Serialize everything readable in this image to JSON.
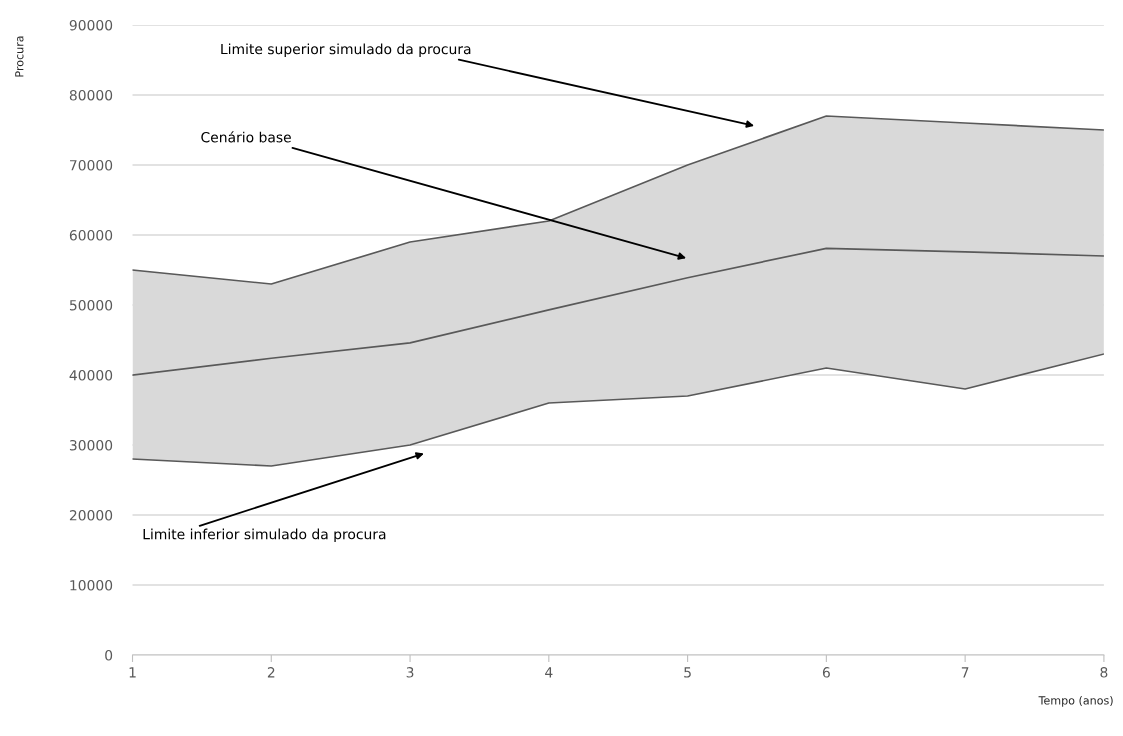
{
  "chart_data": {
    "type": "line",
    "xlabel": "Tempo (anos)",
    "ylabel": "Procura",
    "x": [
      1,
      2,
      3,
      4,
      5,
      6,
      7,
      8
    ],
    "series": [
      {
        "color": "#595959",
        "values": [
          55000,
          53000,
          59000,
          62000,
          70000,
          77000,
          76000,
          75000
        ]
      },
      {
        "color": "#595959",
        "values": [
          40000,
          42400,
          44600,
          49300,
          53900,
          58100,
          57600,
          57000
        ],
        "lower": [
          28000,
          27000,
          30000,
          36000,
          37000,
          41000,
          38000,
          43000
        ],
        "upper": [
          55000,
          53000,
          59000,
          62000,
          70000,
          77000,
          76000,
          75000
        ]
      },
      {
        "color": "#595959",
        "values": [
          28000,
          27000,
          30000,
          36000,
          37000,
          41000,
          38000,
          43000
        ]
      }
    ],
    "annotations": [
      "Limite superior simulado da procura",
      "Cenário base",
      "Limite inferior simulado da procura"
    ],
    "xlim": [
      1,
      8
    ],
    "ylim": [
      0,
      90000
    ],
    "xticks": [
      1,
      2,
      3,
      4,
      5,
      6,
      7,
      8
    ],
    "yticks": [
      0,
      10000,
      20000,
      30000,
      40000,
      50000,
      60000,
      70000,
      80000,
      90000
    ],
    "grid": "y",
    "legend": false,
    "marker": "none",
    "line_style": "solid"
  }
}
